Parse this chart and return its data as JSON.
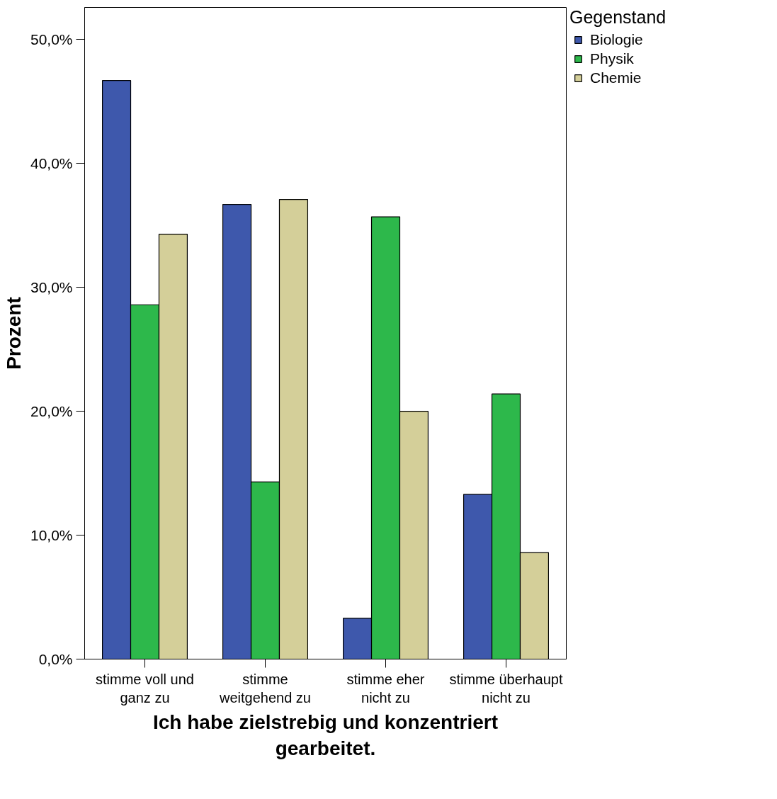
{
  "chart_data": {
    "type": "bar",
    "xlabel": "Ich habe zielstrebig und konzentriert gearbeitet.",
    "ylabel": "Prozent",
    "legend_title": "Gegenstand",
    "categories": [
      "stimme voll und ganz zu",
      "stimme weitgehend zu",
      "stimme eher nicht zu",
      "stimme überhaupt nicht zu"
    ],
    "series": [
      {
        "name": "Biologie",
        "color": "#3e58ac",
        "values": [
          46.7,
          36.7,
          3.3,
          13.3
        ]
      },
      {
        "name": "Physik",
        "color": "#2db84b",
        "values": [
          28.6,
          14.3,
          35.7,
          21.4
        ]
      },
      {
        "name": "Chemie",
        "color": "#d4cf99",
        "values": [
          34.3,
          37.1,
          20.0,
          8.6
        ]
      }
    ],
    "ylim": [
      0,
      52.6
    ],
    "yticks": [
      {
        "value": 0,
        "label": "0,0%"
      },
      {
        "value": 10,
        "label": "10,0%"
      },
      {
        "value": 20,
        "label": "20,0%"
      },
      {
        "value": 30,
        "label": "30,0%"
      },
      {
        "value": 40,
        "label": "40,0%"
      },
      {
        "value": 50,
        "label": "50,0%"
      }
    ],
    "grid": false,
    "legend": "right"
  }
}
